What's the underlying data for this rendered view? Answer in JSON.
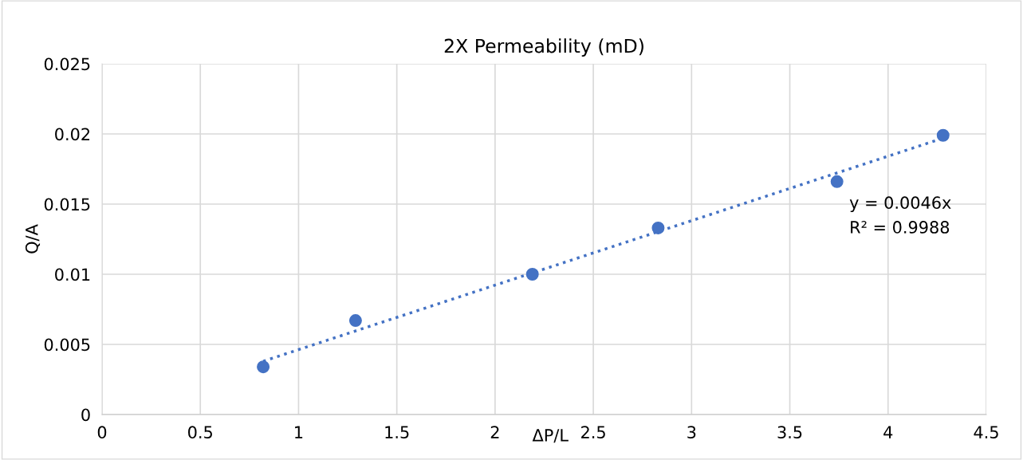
{
  "chart_data": {
    "type": "scatter",
    "title": "2X Permeability (mD)",
    "xlabel": "ΔP/L",
    "ylabel": "Q/A",
    "x": [
      0.82,
      1.29,
      2.19,
      2.83,
      3.74,
      4.28
    ],
    "series": [
      {
        "color": "#4472c4",
        "marker": "circle",
        "values": [
          0.0034,
          0.0067,
          0.01,
          0.0133,
          0.0166,
          0.0199
        ]
      },
      {
        "type": "line",
        "color": "#4472c4",
        "line_style": "dotted",
        "marker": "none",
        "x": [
          0.82,
          4.28
        ],
        "values": [
          0.0038,
          0.0197
        ]
      }
    ],
    "xlim": [
      0,
      4.5
    ],
    "xticks": [
      0,
      0.5,
      1,
      1.5,
      2,
      2.5,
      3,
      3.5,
      4,
      4.5
    ],
    "ylim": [
      0,
      0.025
    ],
    "yticks": [
      0,
      0.005,
      0.01,
      0.015,
      0.02,
      0.025
    ],
    "grid": true,
    "legend": false,
    "annotations": [
      "y = 0.0046x",
      "R² = 0.9988"
    ]
  }
}
